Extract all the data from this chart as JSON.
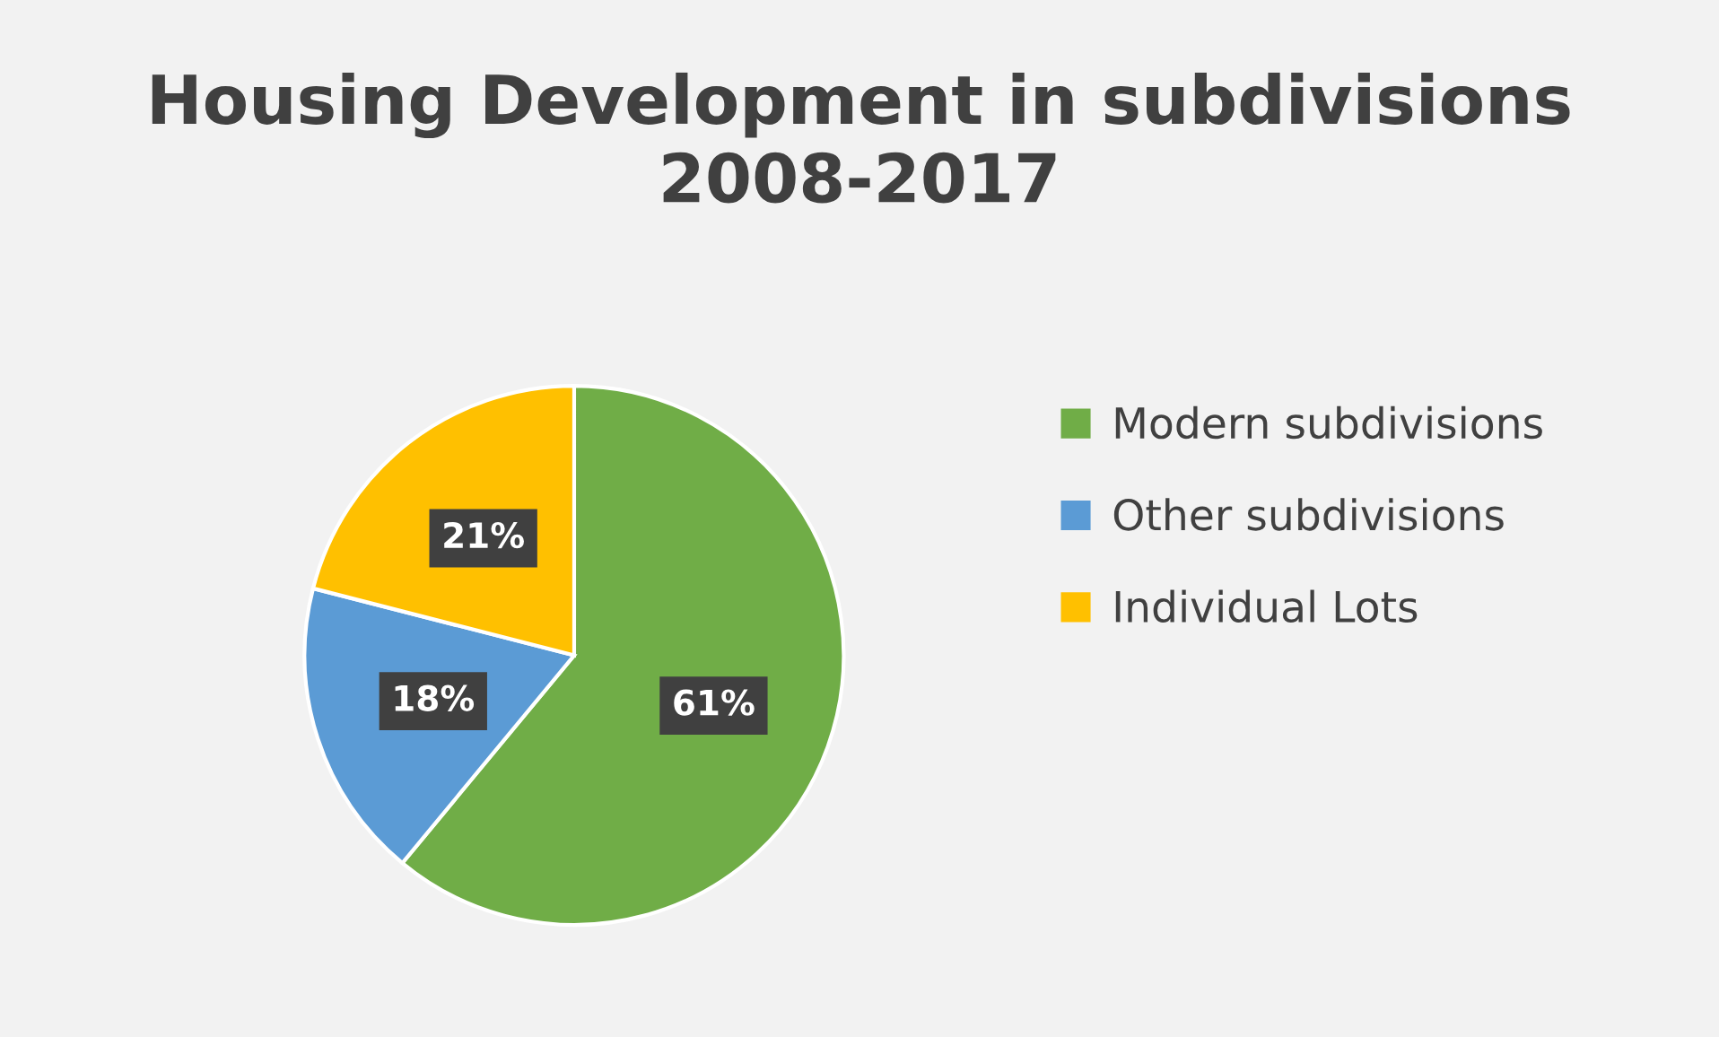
{
  "chart_data": {
    "type": "pie",
    "title": "Housing Development in subdivisions\n2008-2017",
    "categories": [
      "Modern subdivisions",
      "Other subdivisions",
      "Individual Lots"
    ],
    "values": [
      61,
      18,
      21
    ],
    "colors": [
      "#70ad47",
      "#5b9bd5",
      "#ffc000"
    ],
    "value_labels": [
      "61%",
      "18%",
      "21%"
    ],
    "legend": "right"
  }
}
